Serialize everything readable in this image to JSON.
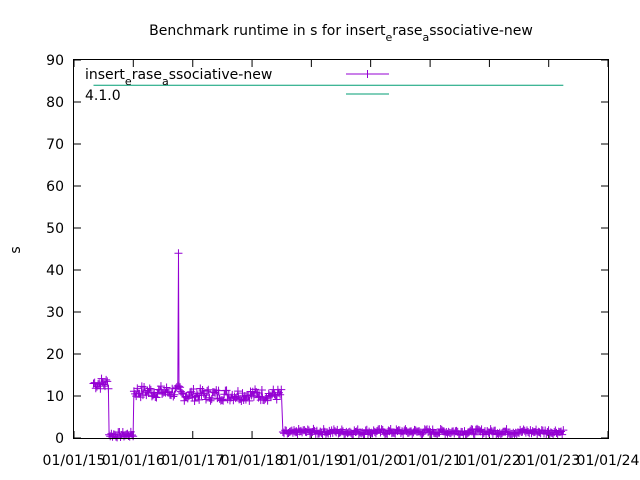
{
  "chart_data": {
    "type": "line",
    "title": {
      "main": "Benchmark runtime in s for insert",
      "sub1": "e",
      "mid": "rase",
      "sub2": "a",
      "end": "ssociative-new"
    },
    "ylabel": "s",
    "xlabel": "",
    "ylim": [
      0,
      90
    ],
    "y_ticks": [
      0,
      10,
      20,
      30,
      40,
      50,
      60,
      70,
      80,
      90
    ],
    "xlim": [
      "2015-01-01",
      "2024-01-01"
    ],
    "x_ticks": [
      {
        "date": "2015-01-01",
        "label": "01/01/15"
      },
      {
        "date": "2016-01-01",
        "label": "01/01/16"
      },
      {
        "date": "2017-01-01",
        "label": "01/01/17"
      },
      {
        "date": "2018-01-01",
        "label": "01/01/18"
      },
      {
        "date": "2019-01-01",
        "label": "01/01/19"
      },
      {
        "date": "2020-01-01",
        "label": "01/01/20"
      },
      {
        "date": "2021-01-01",
        "label": "01/01/21"
      },
      {
        "date": "2022-01-01",
        "label": "01/01/22"
      },
      {
        "date": "2023-01-01",
        "label": "01/01/23"
      },
      {
        "date": "2024-01-01",
        "label": "01/01/24"
      }
    ],
    "grid": false,
    "legend_position": "top-left",
    "series": [
      {
        "name": {
          "a": "insert",
          "s1": "e",
          "b": "rase",
          "s2": "a",
          "c": "ssociative-new"
        },
        "color": "#9400d3",
        "marker": "plus",
        "segments": [
          {
            "start": "2015-05-01",
            "end": "2015-08-01",
            "value": 13
          },
          {
            "start": "2015-08-05",
            "end": "2015-12-31",
            "value": 0.5
          },
          {
            "start": "2016-01-05",
            "end": "2016-10-15",
            "value": 11
          },
          {
            "start": "2016-10-20",
            "end": "2018-06-30",
            "value": 10.3
          },
          {
            "start": "2018-07-10",
            "end": "2018-09-30",
            "value": 0.9
          },
          {
            "start": "2018-10-01",
            "end": "2023-04-01",
            "value": 1.2
          }
        ],
        "spikes": [
          {
            "date": "2016-10-05",
            "value": 44
          }
        ]
      },
      {
        "name": "4.1.0",
        "color": "#009e73",
        "constant": 84,
        "range": [
          "2015-05-01",
          "2023-04-01"
        ]
      }
    ]
  }
}
